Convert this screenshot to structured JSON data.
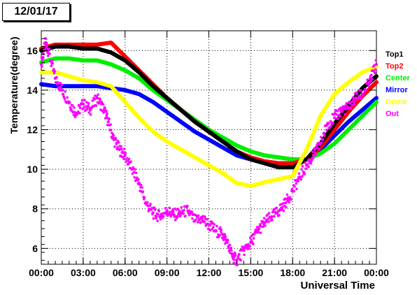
{
  "date_label": "12/01/17",
  "chart_data": {
    "type": "scatter",
    "title": "",
    "xlabel": "Universal Time",
    "ylabel": "Temperature(degree)",
    "xlim": [
      0,
      24
    ],
    "ylim": [
      5.2,
      17.0
    ],
    "x_tick_values": [
      0,
      3,
      6,
      9,
      12,
      15,
      18,
      21,
      24
    ],
    "x_tick_labels": [
      "00:00",
      "03:00",
      "06:00",
      "09:00",
      "12:00",
      "15:00",
      "18:00",
      "21:00",
      "00:00"
    ],
    "y_tick_values": [
      6,
      8,
      10,
      12,
      14,
      16
    ],
    "y_tick_labels": [
      "6",
      "8",
      "10",
      "12",
      "14",
      "16"
    ],
    "grid": true,
    "legend_position": "right",
    "series": [
      {
        "name": "Top1",
        "color": "#000000",
        "x": [
          0,
          1,
          2,
          3,
          4,
          5,
          6,
          7,
          8,
          9,
          10,
          11,
          12,
          13,
          14,
          15,
          16,
          17,
          18,
          19,
          20,
          21,
          22,
          23,
          24
        ],
        "y": [
          16.0,
          16.2,
          16.2,
          16.1,
          16.1,
          15.9,
          15.5,
          14.9,
          14.2,
          13.6,
          13.0,
          12.4,
          11.9,
          11.4,
          10.9,
          10.5,
          10.3,
          10.1,
          10.1,
          10.5,
          11.3,
          12.3,
          13.2,
          14.1,
          14.7
        ]
      },
      {
        "name": "Top2",
        "color": "#ff0000",
        "x": [
          0,
          1,
          2,
          3,
          4,
          5,
          6,
          7,
          8,
          9,
          10,
          11,
          12,
          13,
          14,
          15,
          16,
          17,
          18,
          19,
          20,
          21,
          22,
          23,
          24
        ],
        "y": [
          16.1,
          16.3,
          16.3,
          16.3,
          16.3,
          16.4,
          15.7,
          15.0,
          14.3,
          13.6,
          13.0,
          12.4,
          11.9,
          11.4,
          10.9,
          10.6,
          10.4,
          10.3,
          10.3,
          10.5,
          11.1,
          12.0,
          12.9,
          13.7,
          14.4
        ]
      },
      {
        "name": "Center",
        "color": "#00ee00",
        "x": [
          0,
          1,
          2,
          3,
          4,
          5,
          6,
          7,
          8,
          9,
          10,
          11,
          12,
          13,
          14,
          15,
          16,
          17,
          18,
          19,
          20,
          21,
          22,
          23,
          24
        ],
        "y": [
          15.4,
          15.6,
          15.6,
          15.5,
          15.5,
          15.3,
          15.0,
          14.6,
          14.0,
          13.5,
          13.0,
          12.5,
          12.0,
          11.6,
          11.2,
          10.9,
          10.7,
          10.6,
          10.5,
          10.5,
          10.8,
          11.3,
          12.0,
          12.7,
          13.4
        ]
      },
      {
        "name": "Mirror",
        "color": "#0000ff",
        "x": [
          0,
          1,
          2,
          3,
          4,
          5,
          6,
          7,
          8,
          9,
          10,
          11,
          12,
          13,
          14,
          15,
          16,
          17,
          18,
          19,
          20,
          21,
          22,
          23,
          24
        ],
        "y": [
          14.3,
          14.2,
          14.2,
          14.2,
          14.2,
          14.1,
          14.0,
          13.8,
          13.4,
          12.9,
          12.4,
          11.9,
          11.5,
          11.1,
          10.7,
          10.5,
          10.4,
          10.3,
          10.3,
          10.5,
          11.0,
          11.7,
          12.4,
          13.0,
          13.6
        ]
      },
      {
        "name": "Dome",
        "color": "#ffff00",
        "x": [
          0,
          1,
          2,
          3,
          4,
          5,
          6,
          7,
          8,
          9,
          10,
          11,
          12,
          13,
          14,
          15,
          16,
          17,
          18,
          19,
          20,
          21,
          22,
          23,
          24
        ],
        "y": [
          14.9,
          14.9,
          14.7,
          14.5,
          14.4,
          14.2,
          13.4,
          12.6,
          11.9,
          11.4,
          11.0,
          10.6,
          10.2,
          9.8,
          9.3,
          9.15,
          9.35,
          9.5,
          9.65,
          11.0,
          12.7,
          13.8,
          14.4,
          14.9,
          15.2
        ]
      },
      {
        "name": "Out",
        "color": "#ff00ff",
        "x": [
          0,
          0.3,
          0.5,
          1,
          1.5,
          2,
          2.5,
          3,
          3.5,
          4,
          4.5,
          4.8,
          5.2,
          5.6,
          6,
          6.5,
          7,
          7.5,
          8,
          8.5,
          9,
          9.5,
          10,
          10.5,
          11,
          11.5,
          12,
          12.5,
          13,
          13.3,
          13.7,
          14,
          14.5,
          15,
          15.5,
          16,
          16.5,
          17,
          17.5,
          18,
          18.5,
          19,
          19.5,
          20,
          20.5,
          21,
          21.5,
          22,
          22.5,
          23,
          23.5,
          24
        ],
        "y": [
          15.3,
          16.4,
          16.0,
          14.6,
          14.0,
          13.4,
          12.8,
          13.3,
          13.0,
          13.6,
          13.0,
          12.4,
          11.5,
          11.0,
          10.7,
          10.0,
          9.3,
          8.3,
          7.8,
          7.6,
          7.9,
          7.7,
          7.8,
          7.9,
          7.4,
          7.5,
          7.2,
          6.9,
          6.7,
          6.3,
          5.6,
          5.4,
          5.9,
          6.3,
          6.9,
          7.3,
          7.6,
          7.9,
          8.3,
          8.9,
          9.6,
          10.2,
          10.7,
          11.3,
          12.3,
          12.6,
          13.0,
          13.1,
          13.6,
          13.8,
          14.4,
          15.3
        ]
      }
    ]
  }
}
